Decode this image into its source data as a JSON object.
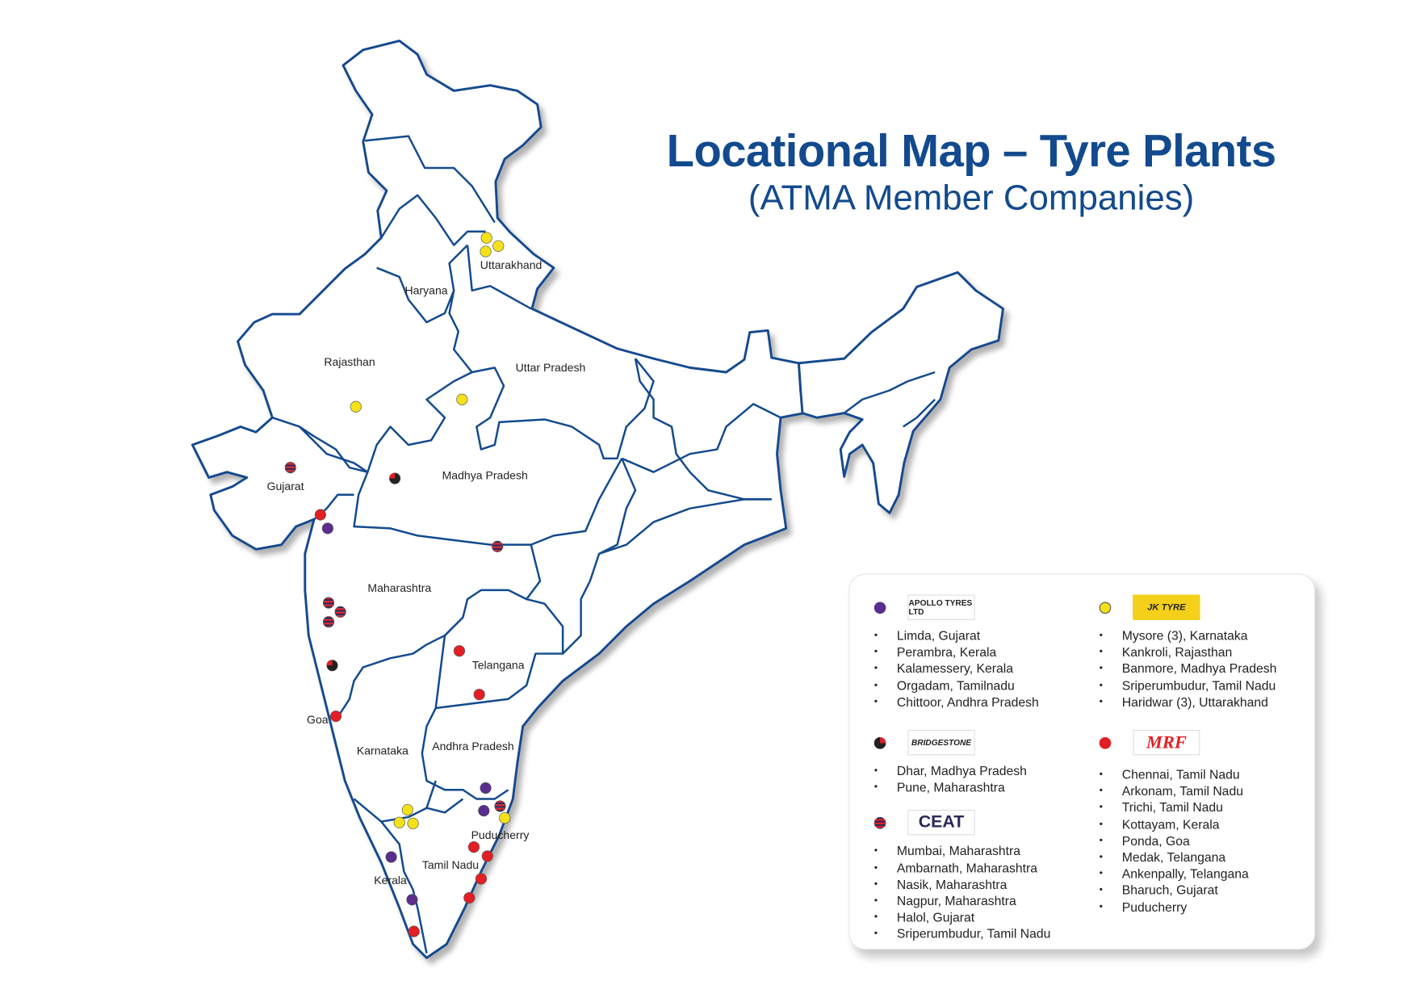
{
  "title": "Locational Map – Tyre Plants",
  "subtitle": "(ATMA Member Companies)",
  "states": {
    "uttarakhand": "Uttarakhand",
    "haryana": "Haryana",
    "rajasthan": "Rajasthan",
    "uttar_pradesh": "Uttar Pradesh",
    "gujarat": "Gujarat",
    "madhya_pradesh": "Madhya Pradesh",
    "maharashtra": "Maharashtra",
    "telangana": "Telangana",
    "goa": "Goa",
    "karnataka": "Karnataka",
    "andhra_pradesh": "Andhra Pradesh",
    "puducherry": "Puducherry",
    "tamil_nadu": "Tamil Nadu",
    "kerala": "Kerala"
  },
  "colors": {
    "apollo": "#5b2d8e",
    "jk_tyre": "#f5e11a",
    "bridgestone": "#222222",
    "mrf": "#e31e24",
    "ceat": "#d8202a",
    "map_border": "#134a8e",
    "title": "#134a8e"
  },
  "legend": {
    "apollo": {
      "logo": "APOLLO TYRES LTD",
      "plants": [
        "Limda, Gujarat",
        "Perambra, Kerala",
        "Kalamessery, Kerala",
        "Orgadam, Tamilnadu",
        "Chittoor, Andhra Pradesh"
      ]
    },
    "bridgestone": {
      "logo": "BRIDGESTONE",
      "plants": [
        "Dhar, Madhya Pradesh",
        "Pune, Maharashtra"
      ]
    },
    "ceat": {
      "logo": "CEAT",
      "plants": [
        "Mumbai, Maharashtra",
        "Ambarnath, Maharashtra",
        "Nasik, Maharashtra",
        "Nagpur, Maharashtra",
        "Halol, Gujarat",
        "Sriperumbudur, Tamil Nadu"
      ]
    },
    "jk_tyre": {
      "logo": "JK TYRE",
      "plants": [
        "Mysore (3), Karnataka",
        "Kankroli, Rajasthan",
        "Banmore, Madhya Pradesh",
        "Sriperumbudur, Tamil Nadu",
        "Haridwar (3), Uttarakhand"
      ]
    },
    "mrf": {
      "logo": "MRF",
      "plants": [
        "Chennai, Tamil Nadu",
        "Arkonam, Tamil Nadu",
        "Trichi, Tamil Nadu",
        "Kottayam, Kerala",
        "Ponda, Goa",
        "Medak, Telangana",
        "Ankenpally, Telangana",
        "Bharuch, Gujarat",
        "Puducherry"
      ]
    }
  }
}
